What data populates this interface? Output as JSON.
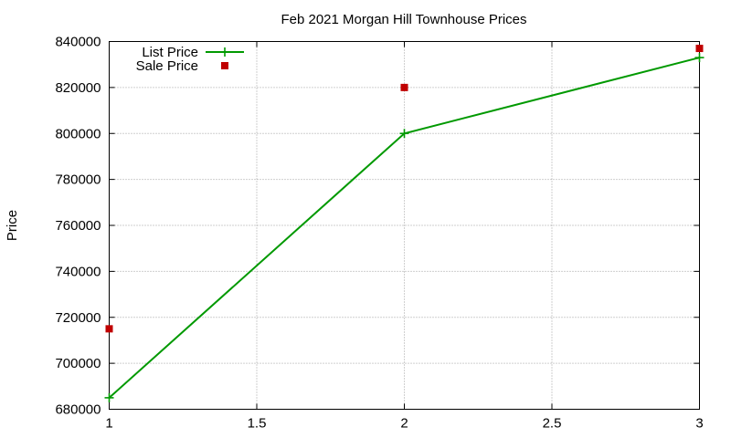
{
  "chart_data": {
    "type": "line",
    "title": "Feb 2021 Morgan Hill Townhouse Prices",
    "xlabel": "",
    "ylabel": "Price",
    "xlim": [
      1,
      3
    ],
    "ylim": [
      680000,
      840000
    ],
    "xticks": [
      "1",
      "1.5",
      "2",
      "2.5",
      "3"
    ],
    "yticks": [
      "680000",
      "700000",
      "720000",
      "740000",
      "760000",
      "780000",
      "800000",
      "820000",
      "840000"
    ],
    "grid": true,
    "legend_position": "top-left",
    "series": [
      {
        "name": "List Price",
        "style": "lines+points",
        "color": "#009900",
        "marker": "plus",
        "x": [
          1,
          2,
          3
        ],
        "y": [
          685000,
          800000,
          833000
        ]
      },
      {
        "name": "Sale Price",
        "style": "points",
        "color": "#c00000",
        "marker": "square",
        "x": [
          1,
          2,
          3
        ],
        "y": [
          715000,
          820000,
          837000
        ]
      }
    ]
  }
}
